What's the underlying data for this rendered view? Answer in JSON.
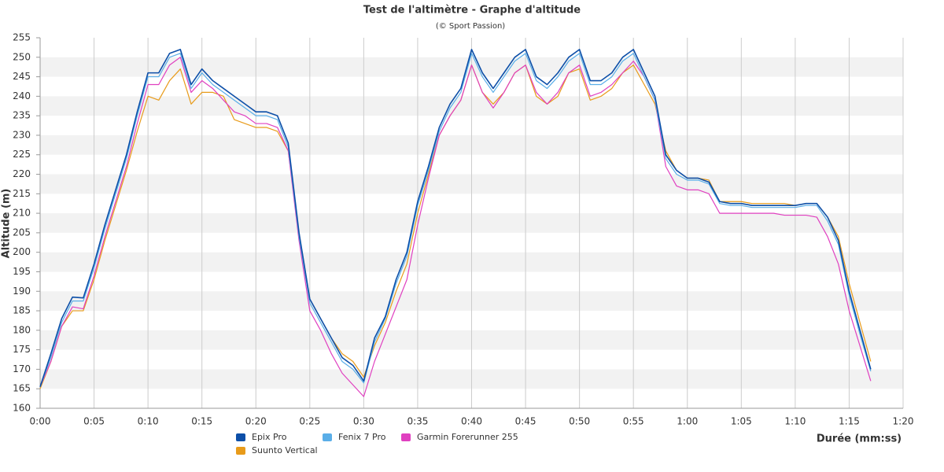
{
  "chart_data": {
    "type": "line",
    "title": "Test de l'altimètre - Graphe d'altitude",
    "subtitle": "(© Sport Passion)",
    "x_label": "Durée (mm:ss)",
    "y_label": "Altitude (m)",
    "x": [
      0,
      1,
      2,
      3,
      4,
      5,
      6,
      7,
      8,
      9,
      10,
      11,
      12,
      13,
      14,
      15,
      16,
      17,
      18,
      19,
      20,
      21,
      22,
      23,
      24,
      25,
      26,
      27,
      28,
      29,
      30,
      31,
      32,
      33,
      34,
      35,
      36,
      37,
      38,
      39,
      40,
      41,
      42,
      43,
      44,
      45,
      46,
      47,
      48,
      49,
      50,
      51,
      52,
      53,
      54,
      55,
      56,
      57,
      58,
      59,
      60,
      61,
      62,
      63,
      64,
      65,
      66,
      67,
      68,
      69,
      70,
      71,
      72,
      73,
      74,
      75,
      76,
      77
    ],
    "series": [
      {
        "name": "Epix Pro",
        "color": "#0d4fa8",
        "values": [
          165.5,
          174,
          183,
          188.5,
          188.3,
          197,
          207,
          216,
          225,
          236,
          246,
          246,
          251,
          252,
          243,
          247,
          244,
          242,
          240,
          238,
          236,
          236,
          235,
          228,
          205,
          188,
          183,
          178,
          173,
          171,
          167,
          178,
          183.5,
          193,
          200,
          213,
          222,
          232,
          238,
          242,
          252,
          246,
          242,
          246,
          250,
          252,
          245,
          243,
          246,
          250,
          252,
          244,
          244,
          246,
          250,
          252,
          246,
          240,
          225,
          221,
          219,
          219,
          218,
          213,
          212.5,
          212.5,
          212,
          212,
          212,
          212,
          212,
          212.5,
          212.5,
          209,
          203,
          190,
          180,
          170
        ]
      },
      {
        "name": "Fenix 7 Pro",
        "color": "#5aaee8",
        "values": [
          165.5,
          173,
          182,
          187.5,
          187.5,
          196,
          206,
          215,
          224,
          235,
          245,
          245,
          250,
          251,
          242,
          246,
          243,
          241,
          239,
          237,
          235,
          235,
          234,
          227,
          204,
          187,
          182,
          177,
          172,
          170,
          166.5,
          177,
          183,
          192,
          199,
          212,
          221,
          231,
          237,
          241,
          251,
          245,
          241,
          245,
          249,
          251,
          244,
          242,
          245,
          249,
          251,
          243,
          243,
          245,
          249,
          251,
          245,
          239,
          224,
          220,
          218.5,
          218.5,
          217.5,
          212.5,
          212,
          212,
          211.5,
          211.5,
          211.5,
          211.5,
          211.5,
          212,
          212,
          208,
          202,
          189,
          179,
          169.5
        ]
      },
      {
        "name": "Garmin Forerunner 255",
        "color": "#e040c0",
        "values": [
          165.5,
          172,
          181,
          186,
          185.5,
          194,
          204,
          213,
          222,
          233,
          243,
          243,
          248,
          250,
          241,
          244,
          242,
          239,
          236,
          235,
          233,
          233,
          232,
          226,
          203,
          185,
          180,
          174,
          169,
          166,
          163,
          172,
          179,
          186,
          193,
          207,
          219,
          230,
          235,
          239,
          248,
          241,
          237,
          241,
          246,
          248,
          241,
          238,
          241,
          246,
          248,
          240,
          241,
          243,
          246,
          249,
          245,
          239,
          222,
          217,
          216,
          216,
          215,
          210,
          210,
          210,
          210,
          210,
          210,
          209.5,
          209.5,
          209.5,
          209,
          204,
          197,
          185,
          176,
          167
        ]
      },
      {
        "name": "Suunto Vertical",
        "color": "#e89b1a",
        "values": [
          165,
          172,
          181,
          185,
          185,
          193,
          203,
          212,
          221,
          231,
          240,
          239,
          244,
          247,
          238,
          241,
          241,
          240,
          234,
          233,
          232,
          232,
          231,
          226,
          205,
          188,
          183,
          178,
          174,
          172,
          168,
          176,
          182,
          190,
          197,
          210,
          220,
          230,
          235,
          239,
          248,
          241,
          238,
          241,
          246,
          248,
          240,
          238,
          240,
          246,
          247,
          239,
          240,
          242,
          246,
          248,
          243,
          238,
          226,
          221,
          219,
          219,
          218.5,
          213,
          213,
          213,
          212.5,
          212.5,
          212.5,
          212.5,
          212,
          212.5,
          212.5,
          209,
          204,
          192,
          182,
          172
        ]
      }
    ],
    "xlim": [
      0,
      80
    ],
    "xticks": [
      {
        "value": 0,
        "label": "0:00"
      },
      {
        "value": 5,
        "label": "0:05"
      },
      {
        "value": 10,
        "label": "0:10"
      },
      {
        "value": 15,
        "label": "0:15"
      },
      {
        "value": 20,
        "label": "0:20"
      },
      {
        "value": 25,
        "label": "0:25"
      },
      {
        "value": 30,
        "label": "0:30"
      },
      {
        "value": 35,
        "label": "0:35"
      },
      {
        "value": 40,
        "label": "0:40"
      },
      {
        "value": 45,
        "label": "0:45"
      },
      {
        "value": 50,
        "label": "0:50"
      },
      {
        "value": 55,
        "label": "0:55"
      },
      {
        "value": 60,
        "label": "1:00"
      },
      {
        "value": 65,
        "label": "1:05"
      },
      {
        "value": 70,
        "label": "1:10"
      },
      {
        "value": 75,
        "label": "1:15"
      },
      {
        "value": 80,
        "label": "1:20"
      }
    ],
    "ylim": [
      160,
      255
    ],
    "yticks": [
      160,
      165,
      170,
      175,
      180,
      185,
      190,
      195,
      200,
      205,
      210,
      215,
      220,
      225,
      230,
      235,
      240,
      245,
      250,
      255
    ],
    "grid": true,
    "legend": "bottom"
  }
}
